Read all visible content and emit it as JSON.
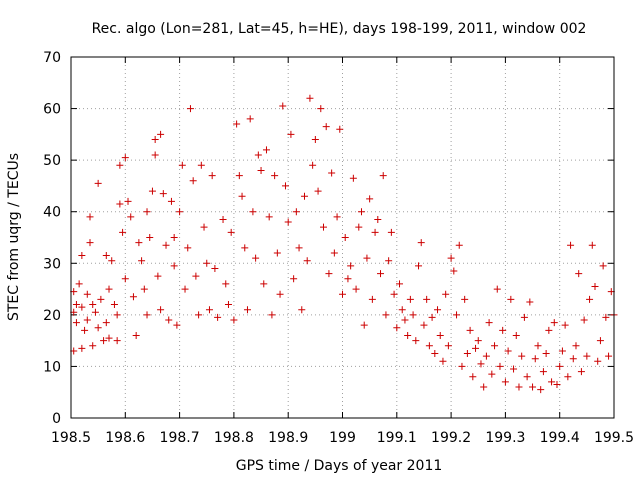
{
  "chart_data": {
    "type": "scatter",
    "title": "Rec. algo (Lon=281, Lat=45, h=HE), days 198-199, 2011, window 002",
    "xlabel": "GPS time / Days of year 2011",
    "ylabel": "STEC from uqrg / TECUs",
    "xlim": [
      198.5,
      199.5
    ],
    "ylim": [
      0,
      70
    ],
    "x_ticks": [
      198.5,
      198.6,
      198.7,
      198.8,
      198.9,
      199.0,
      199.1,
      199.2,
      199.3,
      199.4,
      199.5
    ],
    "x_tick_labels": [
      "198.5",
      "198.6",
      "198.7",
      "198.8",
      "198.9",
      "199",
      "199.1",
      "199.2",
      "199.3",
      "199.4",
      "199.5"
    ],
    "y_ticks": [
      0,
      10,
      20,
      30,
      40,
      50,
      60,
      70
    ],
    "y_tick_labels": [
      "0",
      "10",
      "20",
      "30",
      "40",
      "50",
      "60",
      "70"
    ],
    "grid": true,
    "marker_color": "#cc0000",
    "series": [
      {
        "name": "STEC",
        "points": [
          [
            198.505,
            24.5
          ],
          [
            198.505,
            20.5
          ],
          [
            198.505,
            13
          ],
          [
            198.51,
            22
          ],
          [
            198.51,
            18.5
          ],
          [
            198.515,
            26
          ],
          [
            198.52,
            31.5
          ],
          [
            198.52,
            21.5
          ],
          [
            198.52,
            13.5
          ],
          [
            198.525,
            17
          ],
          [
            198.53,
            24
          ],
          [
            198.53,
            19
          ],
          [
            198.535,
            39
          ],
          [
            198.535,
            34
          ],
          [
            198.54,
            22
          ],
          [
            198.54,
            14
          ],
          [
            198.545,
            20.5
          ],
          [
            198.55,
            45.5
          ],
          [
            198.55,
            17.5
          ],
          [
            198.555,
            23
          ],
          [
            198.56,
            15
          ],
          [
            198.565,
            31.5
          ],
          [
            198.565,
            18.5
          ],
          [
            198.57,
            25
          ],
          [
            198.57,
            15.5
          ],
          [
            198.575,
            30.5
          ],
          [
            198.58,
            22
          ],
          [
            198.585,
            20
          ],
          [
            198.585,
            15
          ],
          [
            198.59,
            41.5
          ],
          [
            198.59,
            49
          ],
          [
            198.595,
            36
          ],
          [
            198.6,
            50.5
          ],
          [
            198.6,
            27
          ],
          [
            198.605,
            42
          ],
          [
            198.61,
            39
          ],
          [
            198.615,
            23.5
          ],
          [
            198.62,
            16
          ],
          [
            198.625,
            34
          ],
          [
            198.63,
            30.5
          ],
          [
            198.635,
            25
          ],
          [
            198.64,
            40
          ],
          [
            198.64,
            20
          ],
          [
            198.645,
            35
          ],
          [
            198.65,
            44
          ],
          [
            198.655,
            54
          ],
          [
            198.655,
            51
          ],
          [
            198.66,
            27.5
          ],
          [
            198.665,
            55
          ],
          [
            198.665,
            21
          ],
          [
            198.67,
            43.5
          ],
          [
            198.675,
            33.5
          ],
          [
            198.68,
            19
          ],
          [
            198.685,
            42
          ],
          [
            198.69,
            29.5
          ],
          [
            198.69,
            35
          ],
          [
            198.695,
            18
          ],
          [
            198.7,
            40
          ],
          [
            198.705,
            49
          ],
          [
            198.71,
            25
          ],
          [
            198.715,
            33
          ],
          [
            198.72,
            60
          ],
          [
            198.725,
            46
          ],
          [
            198.73,
            27.5
          ],
          [
            198.735,
            20
          ],
          [
            198.74,
            49
          ],
          [
            198.745,
            37
          ],
          [
            198.75,
            30
          ],
          [
            198.755,
            21
          ],
          [
            198.76,
            47
          ],
          [
            198.765,
            29
          ],
          [
            198.77,
            19.5
          ],
          [
            198.78,
            38.5
          ],
          [
            198.785,
            26
          ],
          [
            198.79,
            22
          ],
          [
            198.795,
            36
          ],
          [
            198.8,
            19
          ],
          [
            198.805,
            57
          ],
          [
            198.81,
            47
          ],
          [
            198.815,
            43
          ],
          [
            198.82,
            33
          ],
          [
            198.825,
            21
          ],
          [
            198.83,
            58
          ],
          [
            198.835,
            40
          ],
          [
            198.84,
            31
          ],
          [
            198.845,
            51
          ],
          [
            198.85,
            48
          ],
          [
            198.855,
            26
          ],
          [
            198.86,
            52
          ],
          [
            198.865,
            39
          ],
          [
            198.87,
            20
          ],
          [
            198.875,
            47
          ],
          [
            198.88,
            32
          ],
          [
            198.885,
            24
          ],
          [
            198.89,
            60.5
          ],
          [
            198.895,
            45
          ],
          [
            198.9,
            38
          ],
          [
            198.905,
            55
          ],
          [
            198.91,
            27
          ],
          [
            198.915,
            40
          ],
          [
            198.92,
            33
          ],
          [
            198.925,
            21
          ],
          [
            198.93,
            43
          ],
          [
            198.935,
            30.5
          ],
          [
            198.94,
            62
          ],
          [
            198.945,
            49
          ],
          [
            198.95,
            54
          ],
          [
            198.955,
            44
          ],
          [
            198.96,
            60
          ],
          [
            198.965,
            37
          ],
          [
            198.97,
            56.5
          ],
          [
            198.975,
            28
          ],
          [
            198.98,
            47.5
          ],
          [
            198.985,
            32
          ],
          [
            198.99,
            39
          ],
          [
            198.995,
            56
          ],
          [
            199.0,
            24
          ],
          [
            199.005,
            35
          ],
          [
            199.01,
            27
          ],
          [
            199.015,
            29.5
          ],
          [
            199.02,
            46.5
          ],
          [
            199.025,
            25
          ],
          [
            199.03,
            37
          ],
          [
            199.035,
            40
          ],
          [
            199.04,
            18
          ],
          [
            199.045,
            31
          ],
          [
            199.05,
            42.5
          ],
          [
            199.055,
            23
          ],
          [
            199.06,
            36
          ],
          [
            199.065,
            38.5
          ],
          [
            199.07,
            28
          ],
          [
            199.075,
            47
          ],
          [
            199.08,
            20
          ],
          [
            199.085,
            30.5
          ],
          [
            199.09,
            36
          ],
          [
            199.095,
            24
          ],
          [
            199.1,
            17.5
          ],
          [
            199.105,
            26
          ],
          [
            199.11,
            21
          ],
          [
            199.115,
            19
          ],
          [
            199.12,
            16
          ],
          [
            199.125,
            23
          ],
          [
            199.13,
            20
          ],
          [
            199.135,
            15
          ],
          [
            199.14,
            29.5
          ],
          [
            199.145,
            34
          ],
          [
            199.15,
            18
          ],
          [
            199.155,
            23
          ],
          [
            199.16,
            14
          ],
          [
            199.165,
            19.5
          ],
          [
            199.17,
            12.5
          ],
          [
            199.175,
            21
          ],
          [
            199.18,
            16
          ],
          [
            199.185,
            11
          ],
          [
            199.19,
            24
          ],
          [
            199.195,
            14
          ],
          [
            199.2,
            31
          ],
          [
            199.205,
            28.5
          ],
          [
            199.21,
            20
          ],
          [
            199.215,
            33.5
          ],
          [
            199.22,
            10
          ],
          [
            199.225,
            23
          ],
          [
            199.23,
            12.5
          ],
          [
            199.235,
            17
          ],
          [
            199.24,
            8
          ],
          [
            199.245,
            13.5
          ],
          [
            199.25,
            15
          ],
          [
            199.255,
            10.5
          ],
          [
            199.26,
            6
          ],
          [
            199.265,
            12
          ],
          [
            199.27,
            18.5
          ],
          [
            199.275,
            8.5
          ],
          [
            199.28,
            14
          ],
          [
            199.285,
            25
          ],
          [
            199.29,
            10
          ],
          [
            199.295,
            17
          ],
          [
            199.3,
            7
          ],
          [
            199.305,
            13
          ],
          [
            199.31,
            23
          ],
          [
            199.315,
            9.5
          ],
          [
            199.32,
            16
          ],
          [
            199.325,
            6
          ],
          [
            199.33,
            12
          ],
          [
            199.335,
            19.5
          ],
          [
            199.34,
            8
          ],
          [
            199.345,
            22.5
          ],
          [
            199.35,
            6
          ],
          [
            199.355,
            11.5
          ],
          [
            199.36,
            14
          ],
          [
            199.365,
            5.5
          ],
          [
            199.37,
            9
          ],
          [
            199.375,
            12.5
          ],
          [
            199.38,
            17
          ],
          [
            199.385,
            7
          ],
          [
            199.39,
            18.5
          ],
          [
            199.395,
            6.5
          ],
          [
            199.4,
            10
          ],
          [
            199.405,
            13
          ],
          [
            199.41,
            18
          ],
          [
            199.415,
            8
          ],
          [
            199.42,
            33.5
          ],
          [
            199.425,
            11.5
          ],
          [
            199.43,
            14
          ],
          [
            199.435,
            28
          ],
          [
            199.44,
            9
          ],
          [
            199.445,
            19
          ],
          [
            199.45,
            12
          ],
          [
            199.455,
            23
          ],
          [
            199.46,
            33.5
          ],
          [
            199.465,
            25.5
          ],
          [
            199.47,
            11
          ],
          [
            199.475,
            15
          ],
          [
            199.48,
            29.5
          ],
          [
            199.485,
            19.5
          ],
          [
            199.49,
            12
          ],
          [
            199.495,
            24.5
          ],
          [
            199.5,
            20
          ]
        ]
      }
    ]
  }
}
